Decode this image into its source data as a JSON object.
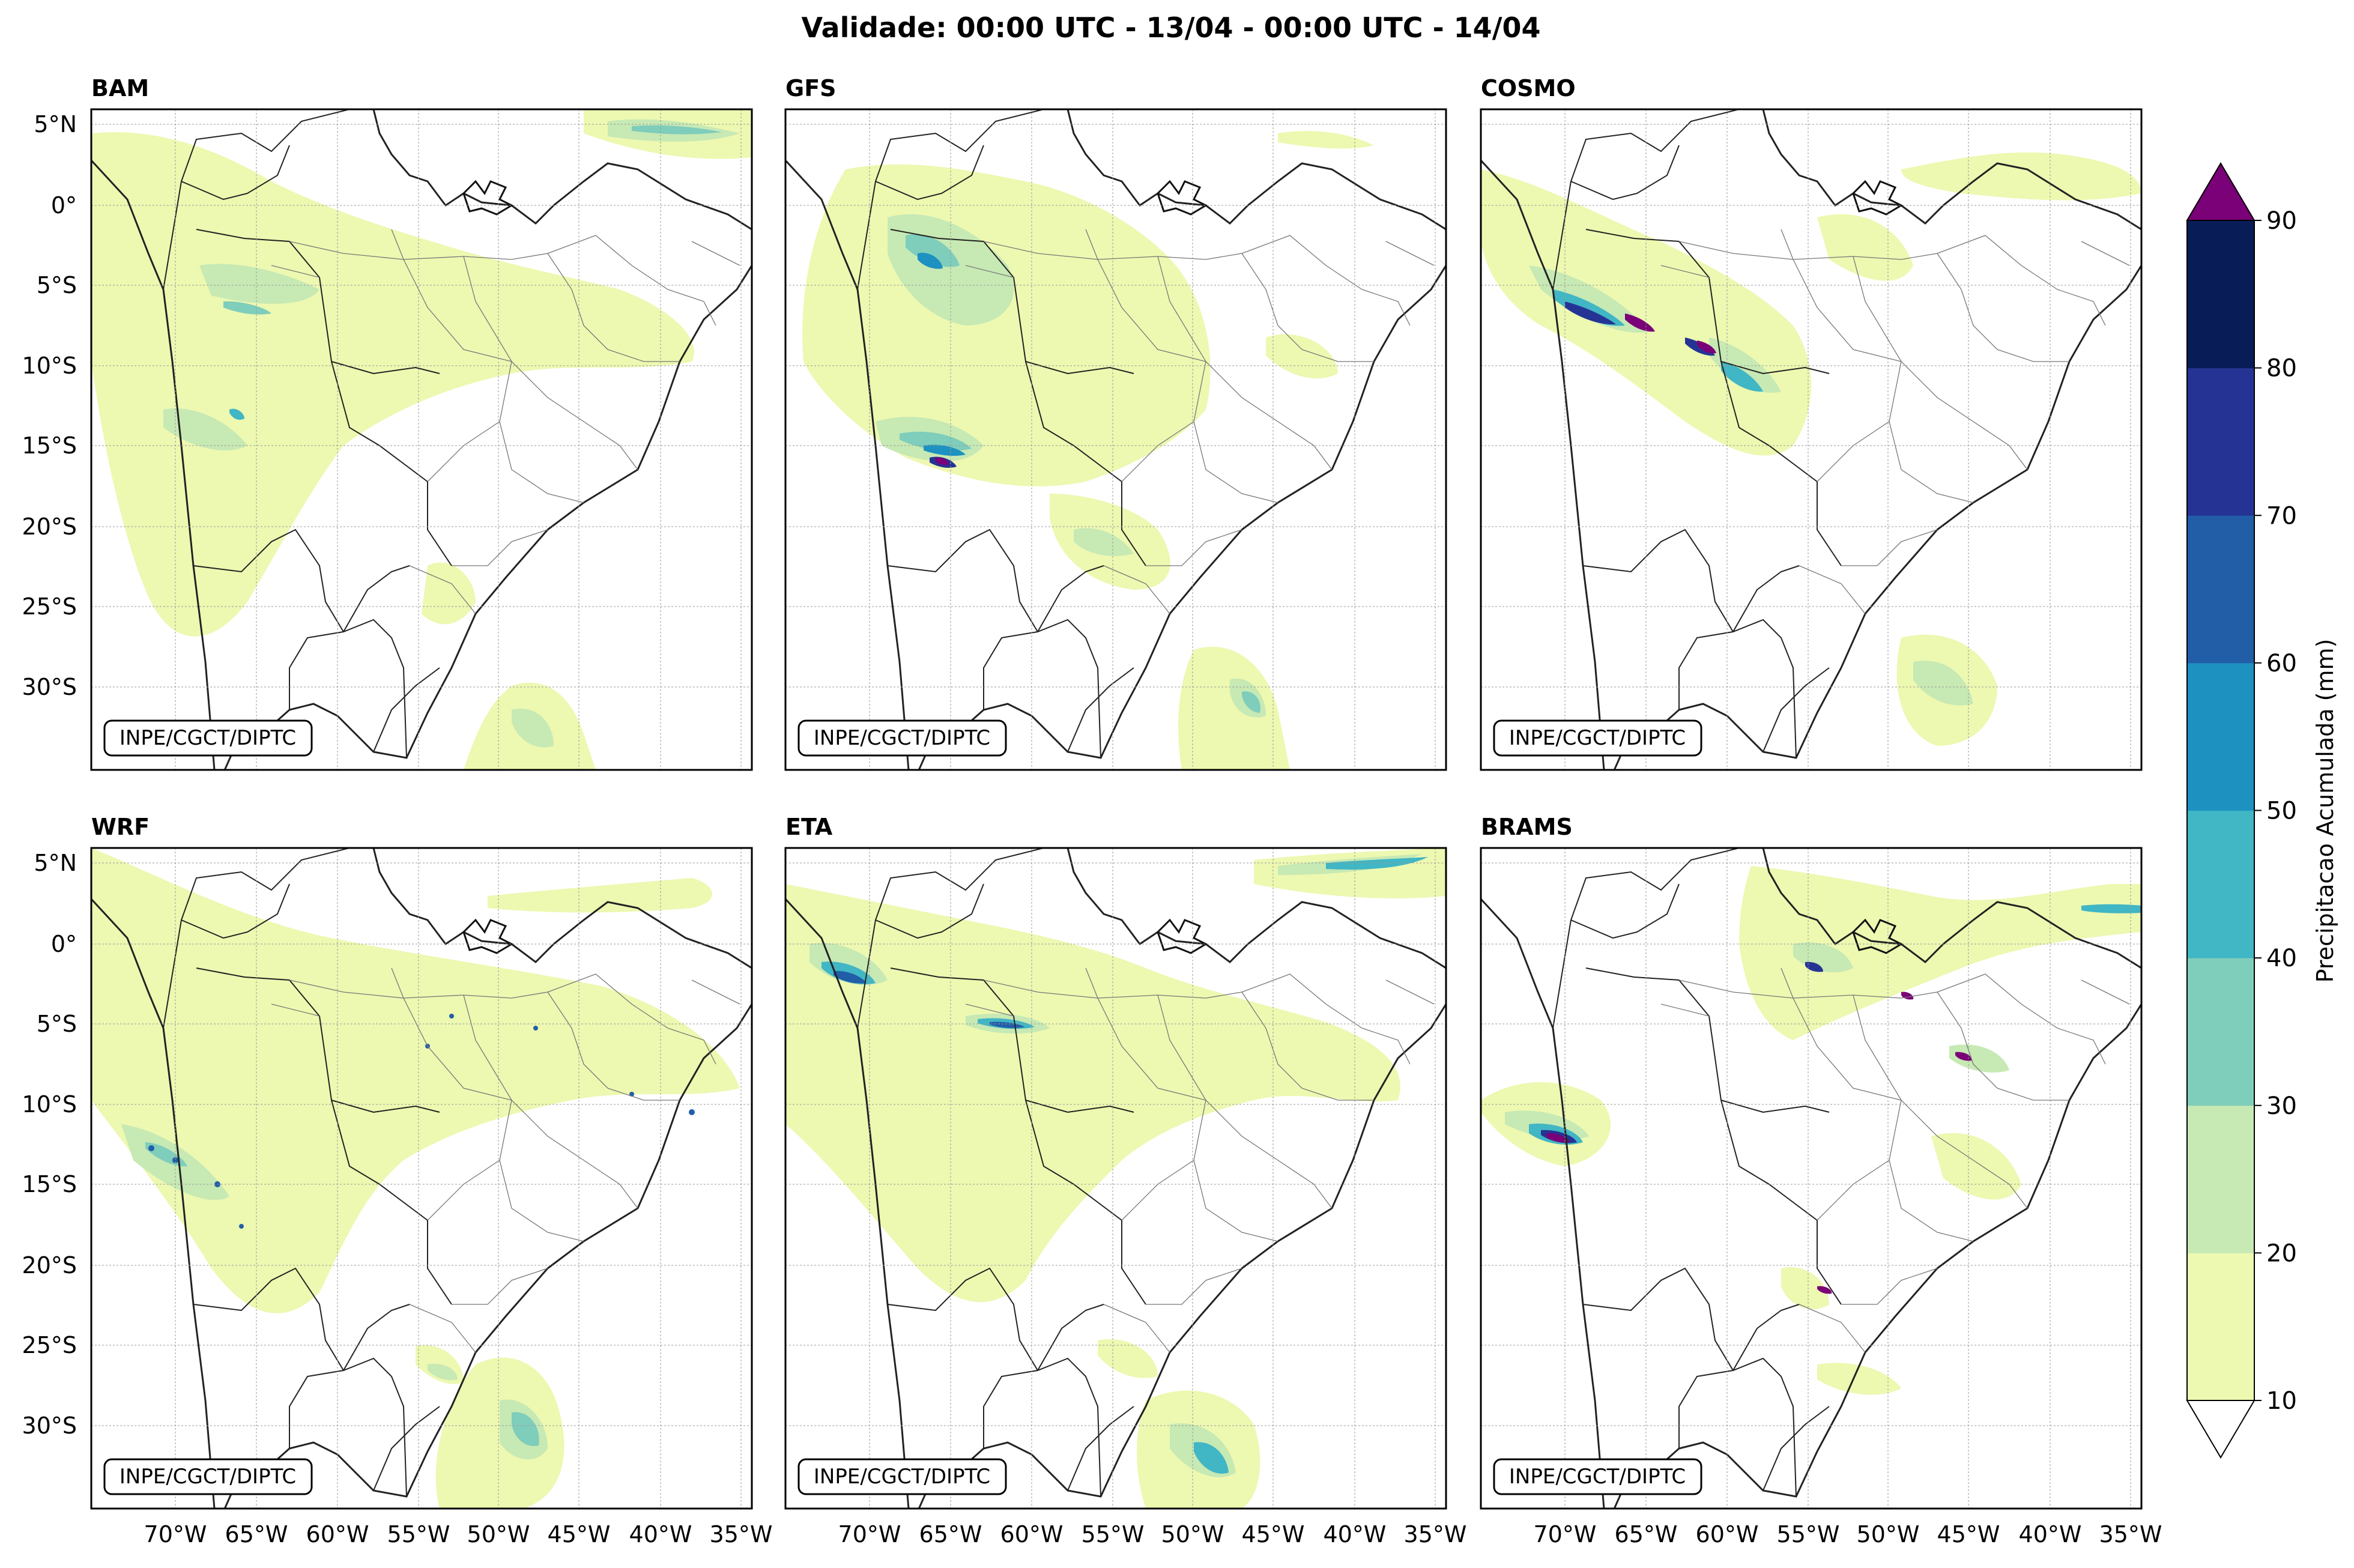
{
  "title": "Validade: 00:00 UTC - 13/04 - 00:00 UTC - 14/04",
  "credit": "INPE/CGCT/DIPTC",
  "panels": [
    {
      "name": "BAM"
    },
    {
      "name": "GFS"
    },
    {
      "name": "COSMO"
    },
    {
      "name": "WRF"
    },
    {
      "name": "ETA"
    },
    {
      "name": "BRAMS"
    }
  ],
  "lat_ticks": [
    "5°N",
    "0°",
    "5°S",
    "10°S",
    "15°S",
    "20°S",
    "25°S",
    "30°S"
  ],
  "lon_ticks": [
    "70°W",
    "65°W",
    "60°W",
    "55°W",
    "50°W",
    "45°W",
    "40°W",
    "35°W"
  ],
  "colorbar": {
    "label": "Precipitacao Acumulada (mm)",
    "ticks": [
      "10",
      "20",
      "30",
      "40",
      "50",
      "60",
      "70",
      "80",
      "90"
    ],
    "colors": [
      "#edf8b1",
      "#c7e9b4",
      "#7fcdbb",
      "#41b6c4",
      "#1d91c0",
      "#225ea8",
      "#253494",
      "#081d58"
    ],
    "over_color": "#7a0177",
    "under_color": "#ffffff"
  }
}
